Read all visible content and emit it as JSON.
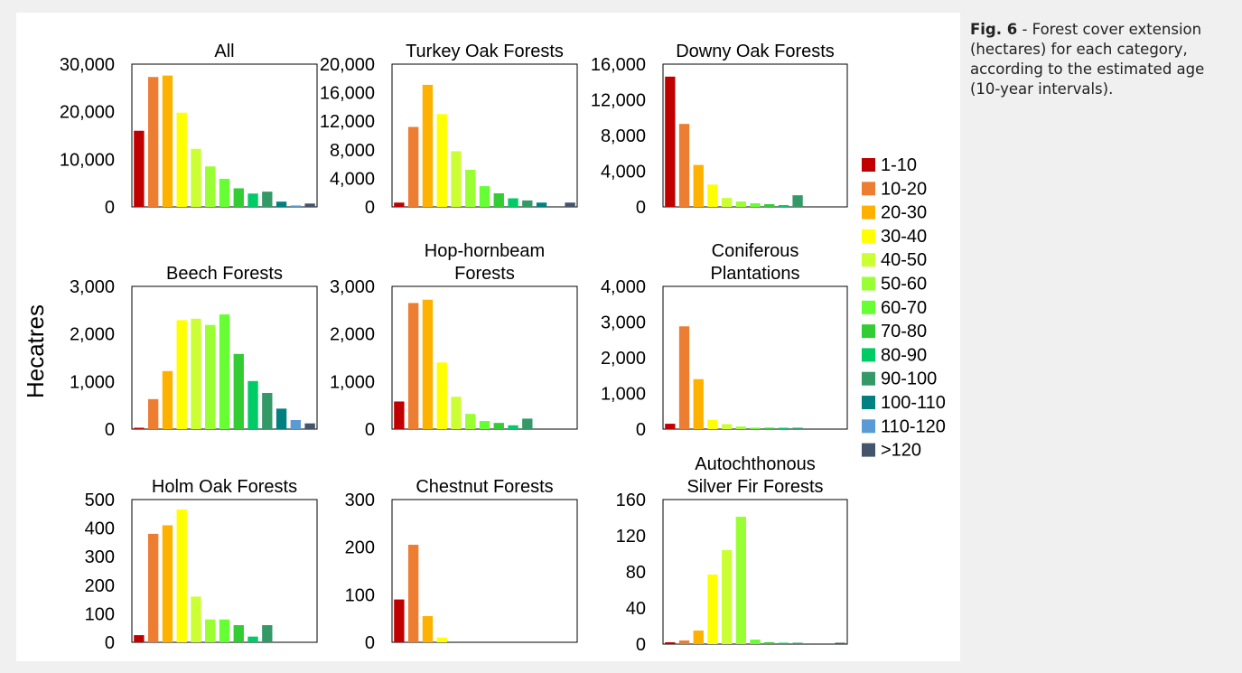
{
  "figure": {
    "y_axis_label": "Hecatres",
    "caption_label": "Fig. 6",
    "caption_text": " - Forest cover extension (hectares) for each category, according to the estimated age (10-year intervals)."
  },
  "legend": {
    "entries": [
      {
        "label": "1-10",
        "color": "#c00000"
      },
      {
        "label": "10-20",
        "color": "#ed7d31"
      },
      {
        "label": "20-30",
        "color": "#ffb100"
      },
      {
        "label": "30-40",
        "color": "#ffff00"
      },
      {
        "label": "40-50",
        "color": "#ccff33"
      },
      {
        "label": "50-60",
        "color": "#99ff33"
      },
      {
        "label": "60-70",
        "color": "#66ff33"
      },
      {
        "label": "70-80",
        "color": "#33cc33"
      },
      {
        "label": "80-90",
        "color": "#00cc66"
      },
      {
        "label": "90-100",
        "color": "#339966"
      },
      {
        "label": "100-110",
        "color": "#008080"
      },
      {
        "label": "110-120",
        "color": "#5b9bd5"
      },
      {
        "label": ">120",
        "color": "#44546a"
      }
    ]
  },
  "chart_data": [
    {
      "type": "bar",
      "title": "All",
      "categories": [
        "1-10",
        "10-20",
        "20-30",
        "30-40",
        "40-50",
        "50-60",
        "60-70",
        "70-80",
        "80-90",
        "90-100",
        "100-110",
        "110-120",
        ">120"
      ],
      "values": [
        16000,
        27300,
        27600,
        19800,
        12200,
        8500,
        5900,
        3900,
        2800,
        3200,
        1100,
        300,
        700
      ],
      "ylim": [
        0,
        30000
      ],
      "yticks": [
        0,
        10000,
        20000,
        30000
      ],
      "ytick_labels": [
        "0",
        "10,000",
        "20,000",
        "30,000"
      ]
    },
    {
      "type": "bar",
      "title": "Turkey Oak Forests",
      "categories": [
        "1-10",
        "10-20",
        "20-30",
        "30-40",
        "40-50",
        "50-60",
        "60-70",
        "70-80",
        "80-90",
        "90-100",
        "100-110",
        "110-120",
        ">120"
      ],
      "values": [
        600,
        11200,
        17100,
        13000,
        7800,
        5200,
        2900,
        1900,
        1200,
        900,
        600,
        0,
        600
      ],
      "ylim": [
        0,
        20000
      ],
      "yticks": [
        0,
        4000,
        8000,
        12000,
        16000,
        20000
      ],
      "ytick_labels": [
        "0",
        "4,000",
        "8,000",
        "12,000",
        "16,000",
        "20,000"
      ]
    },
    {
      "type": "bar",
      "title": "Downy Oak Forests",
      "categories": [
        "1-10",
        "10-20",
        "20-30",
        "30-40",
        "40-50",
        "50-60",
        "60-70",
        "70-80",
        "80-90",
        "90-100",
        "100-110",
        "110-120",
        ">120"
      ],
      "values": [
        14600,
        9300,
        4700,
        2500,
        1000,
        600,
        400,
        300,
        200,
        1300,
        0,
        0,
        0
      ],
      "ylim": [
        0,
        16000
      ],
      "yticks": [
        0,
        4000,
        8000,
        12000,
        16000
      ],
      "ytick_labels": [
        "0",
        "4,000",
        "8,000",
        "12,000",
        "16,000"
      ]
    },
    {
      "type": "bar",
      "title": "Beech Forests",
      "categories": [
        "1-10",
        "10-20",
        "20-30",
        "30-40",
        "40-50",
        "50-60",
        "60-70",
        "70-80",
        "80-90",
        "90-100",
        "100-110",
        "110-120",
        ">120"
      ],
      "values": [
        20,
        630,
        1220,
        2290,
        2320,
        2190,
        2410,
        1580,
        1010,
        760,
        430,
        190,
        120
      ],
      "ylim": [
        0,
        3000
      ],
      "yticks": [
        0,
        1000,
        2000,
        3000
      ],
      "ytick_labels": [
        "0",
        "1,000",
        "2,000",
        "3,000"
      ]
    },
    {
      "type": "bar",
      "title": "Hop-hornbeam Forests",
      "title_lines": [
        "Hop-hornbeam",
        "Forests"
      ],
      "categories": [
        "1-10",
        "10-20",
        "20-30",
        "30-40",
        "40-50",
        "50-60",
        "60-70",
        "70-80",
        "80-90",
        "90-100",
        "100-110",
        "110-120",
        ">120"
      ],
      "values": [
        580,
        2650,
        2720,
        1400,
        680,
        320,
        170,
        130,
        80,
        220,
        0,
        0,
        0
      ],
      "ylim": [
        0,
        3000
      ],
      "yticks": [
        0,
        1000,
        2000,
        3000
      ],
      "ytick_labels": [
        "0",
        "1,000",
        "2,000",
        "3,000"
      ]
    },
    {
      "type": "bar",
      "title": "Coniferous Plantations",
      "title_lines": [
        "Coniferous",
        "Plantations"
      ],
      "categories": [
        "1-10",
        "10-20",
        "20-30",
        "30-40",
        "40-50",
        "50-60",
        "60-70",
        "70-80",
        "80-90",
        "90-100",
        "100-110",
        "110-120",
        ">120"
      ],
      "values": [
        150,
        2880,
        1400,
        260,
        140,
        70,
        40,
        30,
        30,
        30,
        0,
        0,
        0
      ],
      "ylim": [
        0,
        4000
      ],
      "yticks": [
        0,
        1000,
        2000,
        3000,
        4000
      ],
      "ytick_labels": [
        "0",
        "1,000",
        "2,000",
        "3,000",
        "4,000"
      ]
    },
    {
      "type": "bar",
      "title": "Holm Oak Forests",
      "categories": [
        "1-10",
        "10-20",
        "20-30",
        "30-40",
        "40-50",
        "50-60",
        "60-70",
        "70-80",
        "80-90",
        "90-100",
        "100-110",
        "110-120",
        ">120"
      ],
      "values": [
        25,
        380,
        410,
        465,
        160,
        80,
        80,
        60,
        20,
        60,
        0,
        0,
        0
      ],
      "ylim": [
        0,
        500
      ],
      "yticks": [
        0,
        100,
        200,
        300,
        400,
        500
      ],
      "ytick_labels": [
        "0",
        "100",
        "200",
        "300",
        "400",
        "500"
      ]
    },
    {
      "type": "bar",
      "title": "Chestnut Forests",
      "categories": [
        "1-10",
        "10-20",
        "20-30",
        "30-40",
        "40-50",
        "50-60",
        "60-70",
        "70-80",
        "80-90",
        "90-100",
        "100-110",
        "110-120",
        ">120"
      ],
      "values": [
        90,
        205,
        55,
        10,
        0,
        0,
        0,
        0,
        0,
        0,
        0,
        0,
        0
      ],
      "ylim": [
        0,
        300
      ],
      "yticks": [
        0,
        100,
        200,
        300
      ],
      "ytick_labels": [
        "0",
        "100",
        "200",
        "300"
      ]
    },
    {
      "type": "bar",
      "title": "Autochthonous Silver Fir Forests",
      "title_lines": [
        "Autochthonous",
        "Silver Fir Forests"
      ],
      "categories": [
        "1-10",
        "10-20",
        "20-30",
        "30-40",
        "40-50",
        "50-60",
        "60-70",
        "70-80",
        "80-90",
        "90-100",
        "100-110",
        "110-120",
        ">120"
      ],
      "values": [
        2,
        4,
        15,
        77,
        104,
        141,
        5,
        2,
        1,
        1,
        0,
        0,
        1
      ],
      "ylim": [
        0,
        160
      ],
      "yticks": [
        0,
        40,
        80,
        120,
        160
      ],
      "ytick_labels": [
        "0",
        "40",
        "80",
        "120",
        "160"
      ]
    }
  ]
}
